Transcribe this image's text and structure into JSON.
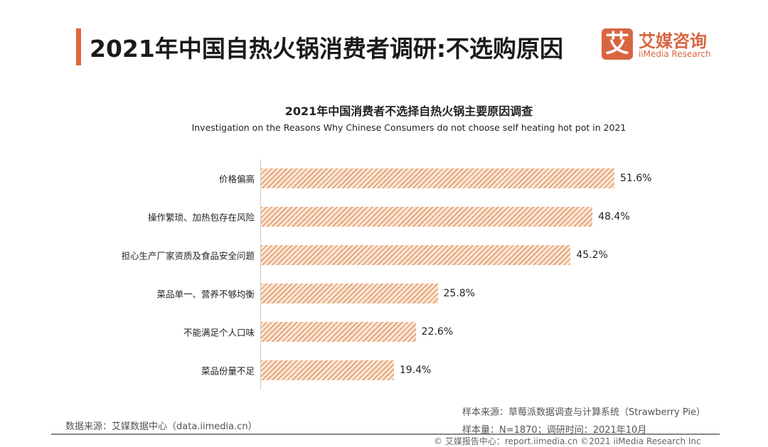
{
  "header": {
    "title": "2021年中国自热火锅消费者调研:不选购原因",
    "logo_mark": "艾",
    "logo_cn": "艾媒咨询",
    "logo_en": "iiMedia Research",
    "accent_color": "#e0663e"
  },
  "chart_data": {
    "type": "bar",
    "orientation": "horizontal",
    "title": "2021年中国消费者不选择自热火锅主要原因调查",
    "subtitle": "Investigation on the Reasons Why Chinese Consumers do not choose self heating hot pot in 2021",
    "categories": [
      "价格偏高",
      "操作繁琐、加热包存在风险",
      "担心生产厂家资质及食品安全问题",
      "菜品单一、营养不够均衡",
      "不能满足个人口味",
      "菜品份量不足"
    ],
    "values": [
      51.6,
      48.4,
      45.2,
      25.8,
      22.6,
      19.4
    ],
    "labels": [
      "51.6%",
      "48.4%",
      "45.2%",
      "25.8%",
      "22.6%",
      "19.4%"
    ],
    "unit": "%",
    "xlim": [
      0,
      51.6
    ],
    "bar_color": "#e8a77a"
  },
  "footer": {
    "data_source": "数据来源：艾媒数据中心（data.iimedia.cn）",
    "sample_source": "样本来源：草莓派数据调查与计算系统（Strawberry Pie）",
    "sample_size": "样本量：N=1870；调研时间：2021年10月",
    "report_center": "© 艾媒报告中心：report.iimedia.cn ©2021 iiMedia Research Inc"
  }
}
